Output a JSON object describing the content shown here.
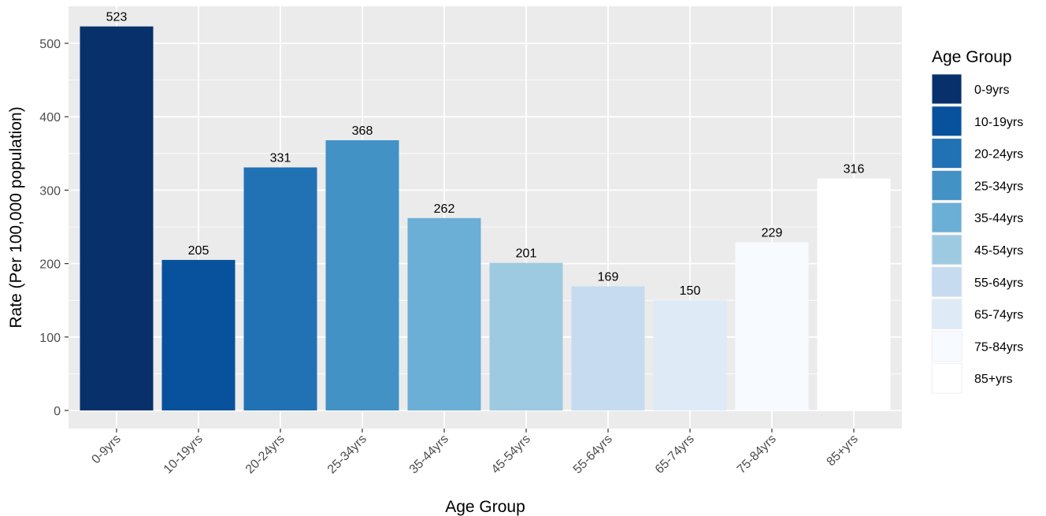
{
  "chart_data": {
    "type": "bar",
    "title": "",
    "xlabel": "Age Group",
    "ylabel": "Rate (Per 100,000 population)",
    "ylim": [
      0,
      550
    ],
    "yticks": [
      0,
      100,
      200,
      300,
      400,
      500
    ],
    "categories": [
      "0-9yrs",
      "10-19yrs",
      "20-24yrs",
      "25-34yrs",
      "35-44yrs",
      "45-54yrs",
      "55-64yrs",
      "65-74yrs",
      "75-84yrs",
      "85+yrs"
    ],
    "values": [
      523,
      205,
      331,
      368,
      262,
      201,
      169,
      150,
      229,
      316
    ],
    "colors": [
      "#08306b",
      "#08519c",
      "#2171b5",
      "#4292c6",
      "#6baed6",
      "#9ecae1",
      "#c6dbef",
      "#deebf7",
      "#f7fbff",
      "#ffffff"
    ],
    "grid": true,
    "legend": {
      "title": "Age Group",
      "position": "right",
      "entries": [
        "0-9yrs",
        "10-19yrs",
        "20-24yrs",
        "25-34yrs",
        "35-44yrs",
        "45-54yrs",
        "55-64yrs",
        "65-74yrs",
        "75-84yrs",
        "85+yrs"
      ]
    },
    "panel_background": "#ebebeb",
    "gridline_color": "#ffffff"
  }
}
